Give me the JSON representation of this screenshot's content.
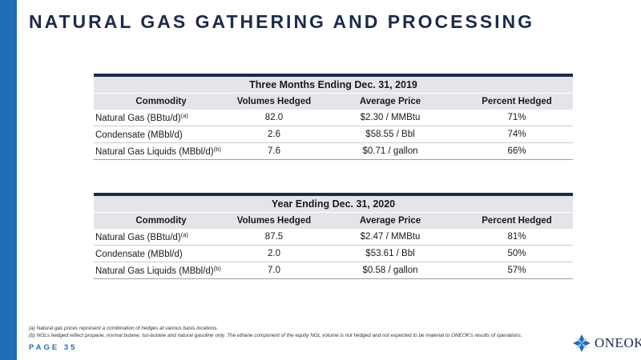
{
  "slide": {
    "title": "NATURAL GAS GATHERING AND PROCESSING",
    "page_label": "PAGE 35",
    "brand_name": "ONEOK",
    "accent_color": "#1f6db5",
    "title_color": "#1c2b4a"
  },
  "tables": [
    {
      "period": "Three Months Ending Dec. 31, 2019",
      "headers": [
        "Commodity",
        "Volumes Hedged",
        "Average Price",
        "Percent Hedged"
      ],
      "rows": [
        {
          "commodity": "Natural Gas (BBtu/d)",
          "note": "(a)",
          "volume": "82.0",
          "price": "$2.30 / MMBtu",
          "percent": "71%"
        },
        {
          "commodity": "Condensate (MBbl/d)",
          "note": "",
          "volume": "2.6",
          "price": "$58.55 / Bbl",
          "percent": "74%"
        },
        {
          "commodity": "Natural Gas Liquids (MBbl/d)",
          "note": "(b)",
          "volume": "7.6",
          "price": "$0.71 / gallon",
          "percent": "66%"
        }
      ]
    },
    {
      "period": "Year Ending Dec. 31, 2020",
      "headers": [
        "Commodity",
        "Volumes Hedged",
        "Average Price",
        "Percent Hedged"
      ],
      "rows": [
        {
          "commodity": "Natural Gas (BBtu/d)",
          "note": "(a)",
          "volume": "87.5",
          "price": "$2.47 / MMBtu",
          "percent": "81%"
        },
        {
          "commodity": "Condensate (MBbl/d)",
          "note": "",
          "volume": "2.0",
          "price": "$53.61 / Bbl",
          "percent": "50%"
        },
        {
          "commodity": "Natural Gas Liquids (MBbl/d)",
          "note": "(b)",
          "volume": "7.0",
          "price": "$0.58 / gallon",
          "percent": "57%"
        }
      ]
    }
  ],
  "footnotes": [
    "(a) Natural gas prices represent a combination of hedges at various basis locations.",
    "(b) NGLs hedged reflect propane, normal butane, iso-butane and natural gasoline only. The ethane component of the equity NGL volume is not hedged and not expected to be material to ONEOK's results of operations."
  ]
}
